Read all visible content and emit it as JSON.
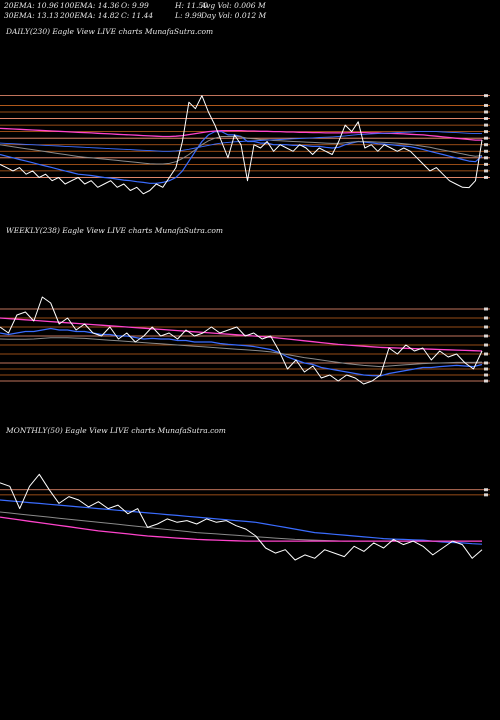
{
  "header": {
    "ema20": "20EMA: 10.96",
    "ema100": "100EMA: 14.36",
    "open": "O: 9.99",
    "high": "H: 11.50",
    "avg_vol": "Avg Vol: 0.006  M",
    "ema30": "30EMA: 13.13",
    "ema200": "200EMA: 14.82",
    "close": "C: 11.44",
    "low": "L: 9.99",
    "day_vol": "Day Vol: 0.012  M"
  },
  "panels": [
    {
      "title": "DAILY(230) Eagle   View  LIVE charts MunafaSutra.com"
    },
    {
      "title": "WEEKLY(238) Eagle   View  LIVE charts MunafaSutra.com"
    },
    {
      "title": "MONTHLY(50) Eagle   View  LIVE charts MunafaSutra.com"
    }
  ],
  "colors": {
    "background": "#000000",
    "price": "#ffffff",
    "ema_blue": "#3a6cff",
    "ema_pink": "#ff44cc",
    "ema_grey": "#8a8a8a",
    "level_orange": "#c8641e",
    "level_salmon": "#ff9a7a"
  },
  "chart_data": [
    {
      "type": "line",
      "timeframe": "daily",
      "series": [
        {
          "values": [
            10.7,
            10.6,
            10.5,
            10.6,
            10.4,
            10.5,
            10.3,
            10.4,
            10.2,
            10.3,
            10.1,
            10.2,
            10.3,
            10.1,
            10.2,
            10.0,
            10.1,
            10.2,
            10.0,
            10.1,
            9.9,
            10.0,
            9.8,
            9.9,
            10.1,
            10.0,
            10.3,
            10.6,
            11.4,
            12.6,
            12.4,
            12.8,
            12.3,
            11.9,
            11.4,
            10.9,
            11.6,
            11.3,
            10.2,
            11.3,
            11.2,
            11.4,
            11.1,
            11.3,
            11.2,
            11.1,
            11.3,
            11.2,
            11.0,
            11.2,
            11.1,
            11.0,
            11.4,
            11.9,
            11.7,
            12.0,
            11.2,
            11.3,
            11.1,
            11.3,
            11.2,
            11.1,
            11.2,
            11.1,
            10.9,
            10.7,
            10.5,
            10.6,
            10.4,
            10.2,
            10.1,
            10.0,
            9.99,
            10.2,
            11.44
          ]
        },
        {
          "values": [
            11.0,
            10.95,
            10.9,
            10.85,
            10.8,
            10.75,
            10.7,
            10.65,
            10.6,
            10.55,
            10.5,
            10.45,
            10.4,
            10.38,
            10.36,
            10.33,
            10.3,
            10.28,
            10.25,
            10.22,
            10.2,
            10.17,
            10.15,
            10.12,
            10.12,
            10.15,
            10.2,
            10.3,
            10.5,
            10.8,
            11.1,
            11.4,
            11.6,
            11.7,
            11.7,
            11.6,
            11.6,
            11.55,
            11.4,
            11.4,
            11.35,
            11.35,
            11.3,
            11.3,
            11.3,
            11.28,
            11.28,
            11.27,
            11.25,
            11.25,
            11.22,
            11.2,
            11.22,
            11.3,
            11.35,
            11.4,
            11.38,
            11.36,
            11.33,
            11.32,
            11.3,
            11.28,
            11.26,
            11.24,
            11.2,
            11.15,
            11.1,
            11.05,
            11.0,
            10.95,
            10.9,
            10.85,
            10.8,
            10.78,
            10.96
          ]
        },
        {
          "values": [
            11.3,
            11.27,
            11.24,
            11.21,
            11.18,
            11.15,
            11.12,
            11.09,
            11.06,
            11.03,
            11.0,
            10.97,
            10.94,
            10.92,
            10.9,
            10.88,
            10.86,
            10.84,
            10.82,
            10.8,
            10.78,
            10.76,
            10.74,
            10.72,
            10.71,
            10.71,
            10.73,
            10.78,
            10.88,
            11.0,
            11.15,
            11.3,
            11.42,
            11.5,
            11.55,
            11.55,
            11.55,
            11.54,
            11.5,
            11.48,
            11.46,
            11.45,
            11.43,
            11.42,
            11.41,
            11.4,
            11.39,
            11.38,
            11.37,
            11.36,
            11.35,
            11.34,
            11.34,
            11.36,
            11.38,
            11.4,
            11.4,
            11.39,
            11.38,
            11.37,
            11.36,
            11.35,
            11.33,
            11.31,
            11.28,
            11.25,
            11.22,
            11.18,
            11.14,
            11.1,
            11.06,
            11.02,
            10.98,
            10.95,
            10.97
          ]
        },
        {
          "values": [
            11.8,
            11.79,
            11.78,
            11.77,
            11.76,
            11.75,
            11.74,
            11.73,
            11.72,
            11.71,
            11.7,
            11.69,
            11.68,
            11.67,
            11.66,
            11.65,
            11.64,
            11.63,
            11.62,
            11.61,
            11.6,
            11.59,
            11.58,
            11.57,
            11.56,
            11.55,
            11.55,
            11.56,
            11.58,
            11.61,
            11.64,
            11.67,
            11.7,
            11.72,
            11.73,
            11.73,
            11.73,
            11.73,
            11.72,
            11.72,
            11.71,
            11.71,
            11.7,
            11.7,
            11.69,
            11.69,
            11.68,
            11.68,
            11.67,
            11.67,
            11.66,
            11.66,
            11.66,
            11.66,
            11.67,
            11.67,
            11.67,
            11.66,
            11.66,
            11.65,
            11.65,
            11.64,
            11.63,
            11.62,
            11.61,
            11.6,
            11.58,
            11.56,
            11.54,
            11.52,
            11.5,
            11.48,
            11.46,
            11.44,
            11.44
          ]
        },
        {
          "values": [
            11.35,
            11.34,
            11.33,
            11.32,
            11.31,
            11.3,
            11.29,
            11.28,
            11.27,
            11.26,
            11.25,
            11.24,
            11.23,
            11.22,
            11.21,
            11.2,
            11.19,
            11.18,
            11.17,
            11.16,
            11.15,
            11.14,
            11.13,
            11.12,
            11.11,
            11.1,
            11.1,
            11.11,
            11.13,
            11.16,
            11.2,
            11.24,
            11.28,
            11.32,
            11.35,
            11.37,
            11.39,
            11.4,
            11.41,
            11.42,
            11.43,
            11.44,
            11.45,
            11.46,
            11.47,
            11.48,
            11.49,
            11.5,
            11.51,
            11.52,
            11.53,
            11.54,
            11.55,
            11.57,
            11.59,
            11.61,
            11.62,
            11.63,
            11.64,
            11.65,
            11.66,
            11.67,
            11.68,
            11.69,
            11.7,
            11.7,
            11.7,
            11.7,
            11.69,
            11.68,
            11.67,
            11.66,
            11.65,
            11.64,
            11.64
          ]
        }
      ],
      "price_levels": [
        12.8,
        12.5,
        12.3,
        12.1,
        11.9,
        11.7,
        11.5,
        11.3,
        11.1,
        10.9,
        10.7,
        10.5,
        10.3
      ],
      "ylim": [
        9.0,
        14.5
      ]
    },
    {
      "type": "line",
      "timeframe": "weekly",
      "series": [
        {
          "values": [
            14.6,
            14.4,
            15.0,
            15.1,
            14.8,
            15.6,
            15.4,
            14.7,
            14.9,
            14.5,
            14.7,
            14.4,
            14.3,
            14.6,
            14.2,
            14.4,
            14.1,
            14.3,
            14.6,
            14.3,
            14.4,
            14.2,
            14.5,
            14.3,
            14.4,
            14.6,
            14.4,
            14.5,
            14.6,
            14.3,
            14.4,
            14.2,
            14.3,
            13.8,
            13.2,
            13.5,
            13.1,
            13.3,
            12.9,
            13.0,
            12.8,
            13.0,
            12.9,
            12.7,
            12.8,
            13.0,
            13.9,
            13.7,
            14.0,
            13.8,
            13.9,
            13.5,
            13.8,
            13.6,
            13.7,
            13.4,
            13.2,
            13.8
          ]
        },
        {
          "values": [
            14.4,
            14.35,
            14.4,
            14.45,
            14.45,
            14.5,
            14.55,
            14.5,
            14.5,
            14.45,
            14.45,
            14.4,
            14.35,
            14.35,
            14.3,
            14.3,
            14.25,
            14.2,
            14.22,
            14.2,
            14.2,
            14.15,
            14.15,
            14.1,
            14.1,
            14.1,
            14.05,
            14.02,
            14.0,
            13.98,
            13.95,
            13.9,
            13.85,
            13.75,
            13.6,
            13.5,
            13.4,
            13.35,
            13.25,
            13.2,
            13.15,
            13.1,
            13.05,
            13.0,
            12.98,
            12.97,
            13.05,
            13.1,
            13.15,
            13.2,
            13.25,
            13.25,
            13.28,
            13.3,
            13.32,
            13.3,
            13.28,
            13.35
          ]
        },
        {
          "values": [
            14.2,
            14.19,
            14.19,
            14.19,
            14.2,
            14.22,
            14.24,
            14.24,
            14.24,
            14.23,
            14.22,
            14.2,
            14.18,
            14.16,
            14.14,
            14.12,
            14.1,
            14.08,
            14.06,
            14.04,
            14.02,
            14.0,
            13.98,
            13.96,
            13.94,
            13.92,
            13.9,
            13.88,
            13.86,
            13.84,
            13.82,
            13.8,
            13.77,
            13.73,
            13.68,
            13.63,
            13.58,
            13.54,
            13.5,
            13.46,
            13.42,
            13.38,
            13.35,
            13.32,
            13.3,
            13.28,
            13.3,
            13.32,
            13.34,
            13.36,
            13.38,
            13.39,
            13.4,
            13.41,
            13.42,
            13.42,
            13.42,
            13.43
          ]
        },
        {
          "values": [
            14.9,
            14.88,
            14.86,
            14.84,
            14.82,
            14.8,
            14.78,
            14.76,
            14.74,
            14.72,
            14.7,
            14.68,
            14.66,
            14.64,
            14.62,
            14.6,
            14.58,
            14.56,
            14.54,
            14.52,
            14.5,
            14.48,
            14.46,
            14.44,
            14.42,
            14.4,
            14.38,
            14.36,
            14.34,
            14.32,
            14.3,
            14.28,
            14.26,
            14.23,
            14.2,
            14.17,
            14.14,
            14.11,
            14.08,
            14.05,
            14.02,
            14.0,
            13.98,
            13.96,
            13.94,
            13.92,
            13.91,
            13.9,
            13.89,
            13.88,
            13.87,
            13.86,
            13.85,
            13.84,
            13.83,
            13.82,
            13.81,
            13.8
          ]
        }
      ],
      "price_levels": [
        15.2,
        14.9,
        14.6,
        14.3,
        14.0,
        13.7,
        13.4,
        13.2,
        13.0,
        12.8
      ],
      "ylim": [
        11.5,
        17.5
      ]
    },
    {
      "type": "line",
      "timeframe": "monthly",
      "series": [
        {
          "values": [
            17.0,
            16.8,
            15.5,
            16.8,
            17.5,
            16.6,
            15.8,
            16.2,
            16.0,
            15.6,
            15.9,
            15.5,
            15.7,
            15.2,
            15.5,
            14.4,
            14.6,
            14.9,
            14.7,
            14.8,
            14.6,
            14.9,
            14.7,
            14.8,
            14.5,
            14.3,
            13.9,
            13.2,
            12.9,
            13.1,
            12.5,
            12.8,
            12.6,
            13.1,
            12.9,
            12.7,
            13.3,
            13.0,
            13.5,
            13.2,
            13.7,
            13.4,
            13.6,
            13.3,
            12.8,
            13.2,
            13.6,
            13.4,
            12.6,
            13.1
          ]
        },
        {
          "values": [
            16.0,
            15.95,
            15.9,
            15.85,
            15.8,
            15.75,
            15.7,
            15.65,
            15.6,
            15.55,
            15.5,
            15.45,
            15.4,
            15.35,
            15.3,
            15.25,
            15.2,
            15.15,
            15.1,
            15.05,
            15.0,
            14.95,
            14.9,
            14.85,
            14.8,
            14.75,
            14.7,
            14.6,
            14.5,
            14.4,
            14.3,
            14.2,
            14.1,
            14.05,
            14.0,
            13.95,
            13.9,
            13.85,
            13.8,
            13.75,
            13.72,
            13.7,
            13.68,
            13.66,
            13.6,
            13.55,
            13.52,
            13.5,
            13.45,
            13.42
          ]
        },
        {
          "values": [
            15.3,
            15.24,
            15.18,
            15.12,
            15.06,
            15.0,
            14.94,
            14.88,
            14.82,
            14.76,
            14.7,
            14.64,
            14.58,
            14.52,
            14.46,
            14.4,
            14.34,
            14.28,
            14.22,
            14.16,
            14.1,
            14.06,
            14.02,
            13.98,
            13.94,
            13.9,
            13.86,
            13.82,
            13.78,
            13.74,
            13.7,
            13.68,
            13.66,
            13.64,
            13.62,
            13.6,
            13.6,
            13.6,
            13.6,
            13.6,
            13.6,
            13.6,
            13.6,
            13.6,
            13.6,
            13.6,
            13.6,
            13.6,
            13.6,
            13.6
          ]
        },
        {
          "values": [
            15.0,
            14.92,
            14.84,
            14.76,
            14.68,
            14.6,
            14.52,
            14.44,
            14.36,
            14.28,
            14.2,
            14.14,
            14.08,
            14.02,
            13.96,
            13.9,
            13.86,
            13.82,
            13.78,
            13.74,
            13.7,
            13.68,
            13.66,
            13.64,
            13.62,
            13.6,
            13.6,
            13.6,
            13.6,
            13.6,
            13.6,
            13.6,
            13.6,
            13.6,
            13.6,
            13.6,
            13.6,
            13.6,
            13.6,
            13.6,
            13.6,
            13.6,
            13.6,
            13.6,
            13.6,
            13.6,
            13.6,
            13.6,
            13.6,
            13.6
          ]
        }
      ],
      "price_levels": [
        16.6,
        16.3
      ],
      "ylim": [
        9.0,
        19.5
      ]
    }
  ]
}
